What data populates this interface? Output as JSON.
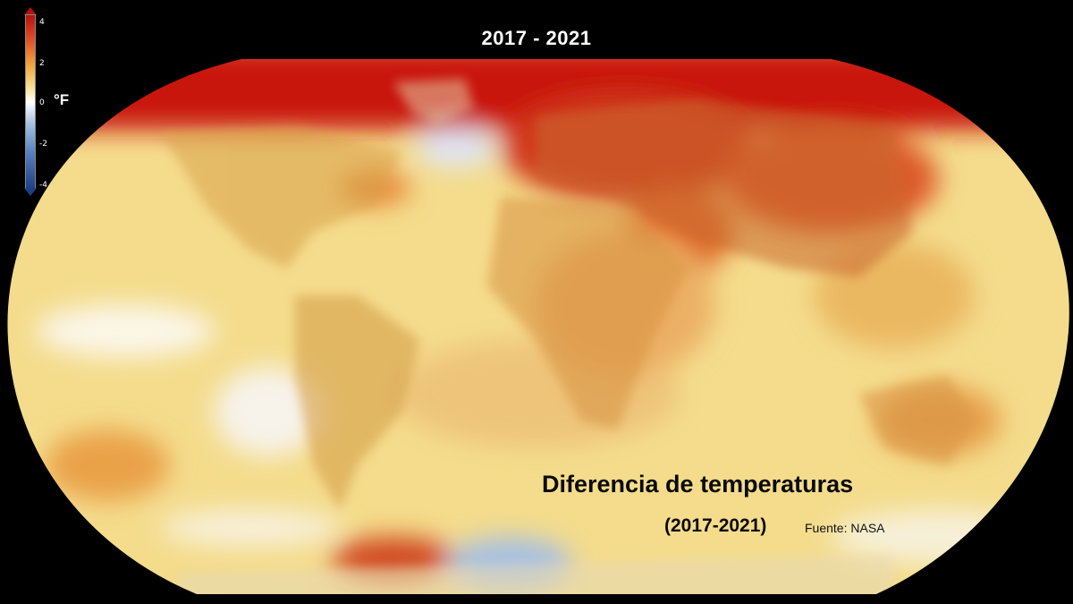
{
  "title": "2017 - 2021",
  "legend": {
    "unit": "°F",
    "ticks": [
      "4",
      "2",
      "0",
      "-2",
      "-4"
    ],
    "range": [
      -4,
      4
    ],
    "colors": {
      "hot": "#b3120e",
      "warm": "#f1a23b",
      "neutral": "#ffffff",
      "cool": "#5a85bf",
      "cold": "#1d3f84"
    }
  },
  "caption": {
    "heading": "Diferencia de temperaturas",
    "years": "(2017-2021)",
    "source": "Fuente: NASA"
  }
}
